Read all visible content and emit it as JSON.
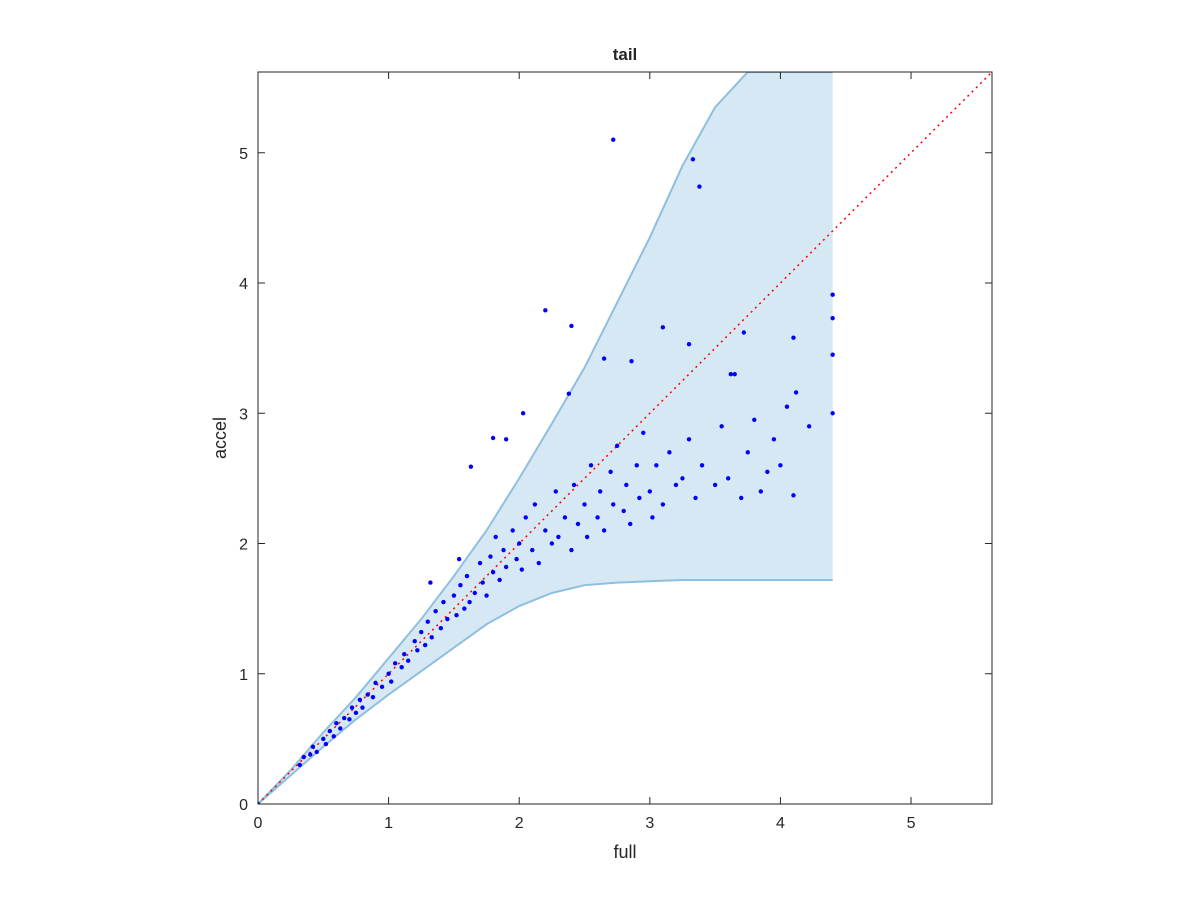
{
  "chart_data": {
    "type": "scatter",
    "title": "tail",
    "x_label": "full",
    "y_label": "accel",
    "xlim": [
      0,
      5.62
    ],
    "ylim": [
      0,
      5.62
    ],
    "xticks": [
      0,
      1,
      2,
      3,
      4,
      5
    ],
    "yticks": [
      0,
      1,
      2,
      3,
      4,
      5
    ],
    "band": {
      "color": "#d6e8f3",
      "edge_color": "#8ebfde",
      "x": [
        0,
        0.25,
        0.5,
        0.75,
        1,
        1.25,
        1.5,
        1.75,
        2,
        2.25,
        2.5,
        2.75,
        3,
        3.25,
        3.5,
        3.75,
        4,
        4.4
      ],
      "lower": [
        0,
        0.22,
        0.44,
        0.65,
        0.84,
        1.02,
        1.2,
        1.38,
        1.52,
        1.62,
        1.68,
        1.7,
        1.71,
        1.72,
        1.72,
        1.72,
        1.72,
        1.72
      ],
      "upper": [
        0,
        0.26,
        0.55,
        0.82,
        1.12,
        1.42,
        1.75,
        2.1,
        2.5,
        2.92,
        3.35,
        3.85,
        4.35,
        4.9,
        5.35,
        5.62,
        5.62,
        5.62
      ]
    },
    "reference_line": {
      "color": "#ff0000",
      "x": [
        0,
        5.62
      ],
      "y": [
        0,
        5.62
      ]
    },
    "series": [
      {
        "color": "#0000ff",
        "x": [
          0.32,
          0.35,
          0.4,
          0.42,
          0.45,
          0.5,
          0.52,
          0.55,
          0.58,
          0.6,
          0.63,
          0.66,
          0.7,
          0.72,
          0.75,
          0.78,
          0.8,
          0.84,
          0.88,
          0.9,
          0.95,
          1.0,
          1.02,
          1.05,
          1.1,
          1.12,
          1.15,
          1.2,
          1.22,
          1.25,
          1.28,
          1.3,
          1.33,
          1.36,
          1.4,
          1.42,
          1.45,
          1.5,
          1.52,
          1.55,
          1.58,
          1.6,
          1.62,
          1.66,
          1.7,
          1.72,
          1.75,
          1.78,
          1.8,
          1.82,
          1.85,
          1.88,
          1.9,
          1.95,
          1.98,
          2.0,
          2.02,
          2.05,
          2.1,
          2.12,
          2.15,
          2.2,
          2.25,
          2.28,
          2.3,
          2.35,
          2.4,
          2.42,
          2.45,
          2.5,
          2.52,
          2.55,
          2.6,
          2.62,
          2.65,
          2.7,
          2.72,
          2.75,
          2.8,
          2.82,
          2.85,
          2.9,
          2.92,
          2.95,
          3.0,
          3.02,
          3.05,
          3.1,
          3.15,
          3.2,
          3.25,
          3.3,
          3.35,
          3.4,
          3.5,
          3.55,
          3.6,
          3.65,
          3.7,
          3.75,
          3.8,
          3.85,
          3.9,
          3.95,
          4.0,
          4.05,
          4.1,
          4.12,
          4.1,
          4.22,
          4.4,
          4.4,
          4.4,
          4.4,
          2.72,
          3.33,
          3.38,
          2.2,
          2.4,
          2.38,
          2.03,
          1.8,
          1.9,
          1.63,
          1.54,
          3.1,
          2.65,
          3.3,
          3.72,
          3.62,
          2.86,
          1.32,
          0
        ],
        "y": [
          0.3,
          0.36,
          0.38,
          0.44,
          0.4,
          0.5,
          0.46,
          0.56,
          0.52,
          0.62,
          0.58,
          0.66,
          0.65,
          0.74,
          0.7,
          0.8,
          0.74,
          0.84,
          0.82,
          0.93,
          0.9,
          1.0,
          0.94,
          1.08,
          1.05,
          1.15,
          1.1,
          1.25,
          1.18,
          1.32,
          1.22,
          1.4,
          1.28,
          1.48,
          1.35,
          1.55,
          1.42,
          1.6,
          1.45,
          1.68,
          1.5,
          1.75,
          1.55,
          1.62,
          1.85,
          1.7,
          1.6,
          1.9,
          1.78,
          2.05,
          1.72,
          1.95,
          1.82,
          2.1,
          1.88,
          2.0,
          1.8,
          2.2,
          1.95,
          2.3,
          1.85,
          2.1,
          2.0,
          2.4,
          2.05,
          2.2,
          1.95,
          2.45,
          2.15,
          2.3,
          2.05,
          2.6,
          2.2,
          2.4,
          2.1,
          2.55,
          2.3,
          2.75,
          2.25,
          2.45,
          2.15,
          2.6,
          2.35,
          2.85,
          2.4,
          2.2,
          2.6,
          2.3,
          2.7,
          2.45,
          2.5,
          2.8,
          2.35,
          2.6,
          2.45,
          2.9,
          2.5,
          3.3,
          2.35,
          2.7,
          2.95,
          2.4,
          2.55,
          2.8,
          2.6,
          3.05,
          2.37,
          3.16,
          3.58,
          2.9,
          3.0,
          3.45,
          3.73,
          3.91,
          5.1,
          4.95,
          4.74,
          3.79,
          3.67,
          3.15,
          3.0,
          2.81,
          2.8,
          2.59,
          1.88,
          3.66,
          3.42,
          3.53,
          3.62,
          3.3,
          3.4,
          1.7,
          0
        ]
      }
    ]
  }
}
